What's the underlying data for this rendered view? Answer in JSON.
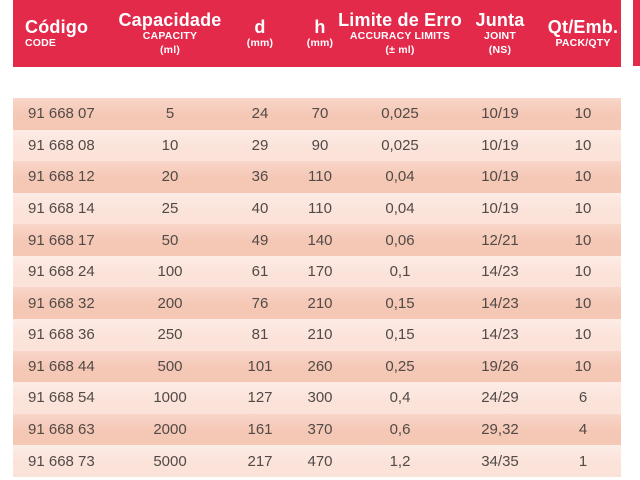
{
  "colors": {
    "page_bg": "#ffffff",
    "header_bg": "#e32a4b",
    "header_text": "#ffffff",
    "row_dark": "#f5c7b5",
    "row_dark_top": "#f8d6c9",
    "row_light": "#fbe3da",
    "row_light_top": "#fdece6",
    "cell_text": "#514a46"
  },
  "table": {
    "columns": [
      {
        "key": "code",
        "lines": [
          "Código",
          "CODE",
          ""
        ]
      },
      {
        "key": "capacity",
        "lines": [
          "Capacidade",
          "CAPACITY",
          "(ml)"
        ]
      },
      {
        "key": "d",
        "lines": [
          "d",
          "(mm)",
          ""
        ]
      },
      {
        "key": "h",
        "lines": [
          "h",
          "(mm)",
          ""
        ]
      },
      {
        "key": "error",
        "lines": [
          "Limite de Erro",
          "ACCURACY LIMITS",
          "(± ml)"
        ]
      },
      {
        "key": "joint",
        "lines": [
          "Junta",
          "JOINT",
          "(NS)"
        ]
      },
      {
        "key": "pack",
        "lines": [
          "Qt/Emb.",
          "PACK/QTY",
          ""
        ]
      }
    ],
    "rows": [
      [
        "91 668 07",
        "5",
        "24",
        "70",
        "0,025",
        "10/19",
        "10"
      ],
      [
        "91 668 08",
        "10",
        "29",
        "90",
        "0,025",
        "10/19",
        "10"
      ],
      [
        "91 668 12",
        "20",
        "36",
        "110",
        "0,04",
        "10/19",
        "10"
      ],
      [
        "91 668 14",
        "25",
        "40",
        "110",
        "0,04",
        "10/19",
        "10"
      ],
      [
        "91 668 17",
        "50",
        "49",
        "140",
        "0,06",
        "12/21",
        "10"
      ],
      [
        "91 668 24",
        "100",
        "61",
        "170",
        "0,1",
        "14/23",
        "10"
      ],
      [
        "91 668 32",
        "200",
        "76",
        "210",
        "0,15",
        "14/23",
        "10"
      ],
      [
        "91 668 36",
        "250",
        "81",
        "210",
        "0,15",
        "14/23",
        "10"
      ],
      [
        "91 668 44",
        "500",
        "101",
        "260",
        "0,25",
        "19/26",
        "10"
      ],
      [
        "91 668 54",
        "1000",
        "127",
        "300",
        "0,4",
        "24/29",
        "6"
      ],
      [
        "91 668 63",
        "2000",
        "161",
        "370",
        "0,6",
        "29,32",
        "4"
      ],
      [
        "91 668 73",
        "5000",
        "217",
        "470",
        "1,2",
        "34/35",
        "1"
      ]
    ]
  }
}
